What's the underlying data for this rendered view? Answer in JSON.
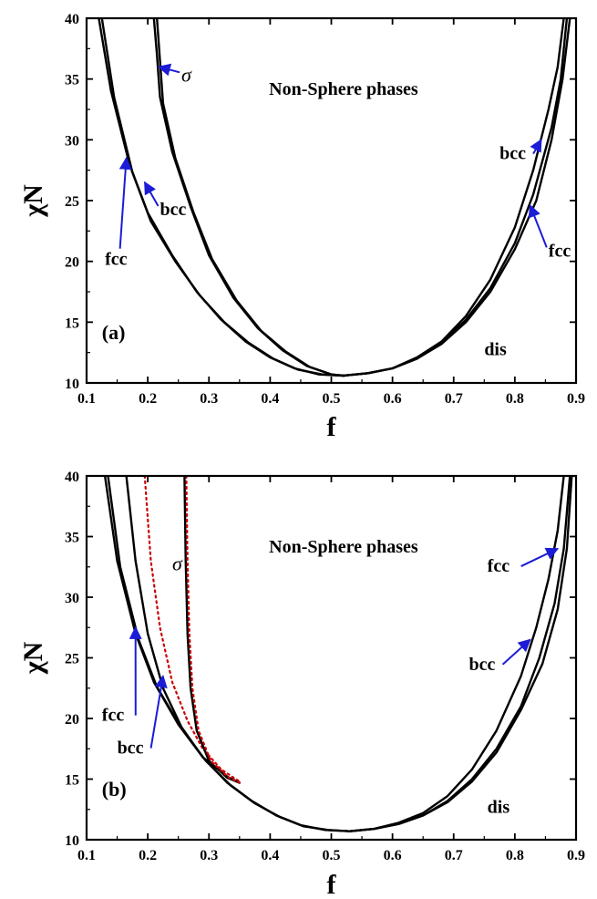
{
  "chart_data": [
    {
      "type": "line",
      "panel_label": "(a)",
      "xlabel": "f",
      "ylabel": "χN",
      "xlim": [
        0.1,
        0.9
      ],
      "ylim": [
        10,
        40
      ],
      "xticks": [
        "0.1",
        "0.2",
        "0.3",
        "0.4",
        "0.5",
        "0.6",
        "0.7",
        "0.8",
        "0.9"
      ],
      "yticks": [
        "10",
        "15",
        "20",
        "25",
        "30",
        "35",
        "40"
      ],
      "region_label": "Non-Sphere phases",
      "series": [
        {
          "color": "#000000",
          "style": "solid",
          "x": [
            0.12,
            0.14,
            0.17,
            0.2,
            0.24,
            0.28,
            0.32,
            0.36,
            0.4,
            0.44,
            0.48,
            0.52
          ],
          "y": [
            40,
            34,
            28,
            24,
            20.5,
            17.5,
            15.2,
            13.4,
            12.1,
            11.2,
            10.7,
            10.6
          ]
        },
        {
          "color": "#000000",
          "style": "solid",
          "x": [
            0.125,
            0.145,
            0.175,
            0.205,
            0.245,
            0.285,
            0.325,
            0.365,
            0.405,
            0.445,
            0.485,
            0.52
          ],
          "y": [
            40,
            33.5,
            27.3,
            23.3,
            20,
            17.2,
            15,
            13.3,
            12,
            11.1,
            10.7,
            10.6
          ]
        },
        {
          "color": "#000000",
          "style": "solid",
          "x": [
            0.21,
            0.215,
            0.22,
            0.24,
            0.27,
            0.3,
            0.34,
            0.38,
            0.42,
            0.46,
            0.5,
            0.52
          ],
          "y": [
            40,
            37,
            33.5,
            29,
            24.5,
            20.5,
            17,
            14.5,
            12.7,
            11.4,
            10.7,
            10.6
          ]
        },
        {
          "color": "#000000",
          "style": "solid",
          "x": [
            0.215,
            0.22,
            0.225,
            0.245,
            0.275,
            0.305,
            0.345,
            0.385,
            0.425,
            0.465,
            0.5,
            0.52
          ],
          "y": [
            40,
            36.5,
            33,
            28.5,
            24,
            20.2,
            16.8,
            14.3,
            12.6,
            11.3,
            10.7,
            10.6
          ]
        },
        {
          "color": "#000000",
          "style": "solid",
          "x": [
            0.52,
            0.56,
            0.6,
            0.64,
            0.68,
            0.72,
            0.76,
            0.8,
            0.83,
            0.86,
            0.875,
            0.885
          ],
          "y": [
            10.6,
            10.8,
            11.2,
            12,
            13.3,
            15.2,
            17.8,
            21.5,
            25.5,
            31,
            35,
            40
          ]
        },
        {
          "color": "#000000",
          "style": "solid",
          "x": [
            0.52,
            0.56,
            0.6,
            0.64,
            0.68,
            0.72,
            0.76,
            0.8,
            0.83,
            0.855,
            0.87,
            0.88
          ],
          "y": [
            10.6,
            10.8,
            11.2,
            12.1,
            13.4,
            15.5,
            18.5,
            22.8,
            27.5,
            32.5,
            36,
            40
          ]
        },
        {
          "color": "#000000",
          "style": "solid",
          "x": [
            0.52,
            0.56,
            0.6,
            0.64,
            0.68,
            0.72,
            0.76,
            0.8,
            0.835,
            0.86,
            0.878,
            0.89
          ],
          "y": [
            10.6,
            10.8,
            11.2,
            12,
            13.2,
            15,
            17.5,
            21,
            25,
            30,
            35,
            40
          ]
        }
      ],
      "annotations": [
        {
          "text": "σ",
          "x": 0.255,
          "y": 34.8,
          "arrow_to": [
            0.218,
            36.0
          ]
        },
        {
          "text": "bcc",
          "x": 0.22,
          "y": 23.8,
          "arrow_to": [
            0.195,
            26.5
          ]
        },
        {
          "text": "fcc",
          "x": 0.13,
          "y": 19.7,
          "arrow_to": [
            0.165,
            28.5
          ]
        },
        {
          "text": "bcc",
          "x": 0.775,
          "y": 28.4,
          "arrow_to": [
            0.843,
            30.0
          ]
        },
        {
          "text": "fcc",
          "x": 0.855,
          "y": 20.4,
          "arrow_to": [
            0.825,
            24.6
          ]
        },
        {
          "text": "dis",
          "x": 0.75,
          "y": 12.3
        }
      ]
    },
    {
      "type": "line",
      "panel_label": "(b)",
      "xlabel": "f",
      "ylabel": "χN",
      "xlim": [
        0.1,
        0.9
      ],
      "ylim": [
        10,
        40
      ],
      "xticks": [
        "0.1",
        "0.2",
        "0.3",
        "0.4",
        "0.5",
        "0.6",
        "0.7",
        "0.8",
        "0.9"
      ],
      "yticks": [
        "10",
        "15",
        "20",
        "25",
        "30",
        "35",
        "40"
      ],
      "region_label": "Non-Sphere phases",
      "series": [
        {
          "color": "#000000",
          "style": "solid",
          "x": [
            0.13,
            0.15,
            0.18,
            0.21,
            0.25,
            0.29,
            0.33,
            0.37,
            0.41,
            0.45,
            0.49,
            0.53
          ],
          "y": [
            40,
            33,
            27,
            23,
            19.5,
            16.8,
            14.7,
            13.2,
            12,
            11.2,
            10.8,
            10.7
          ]
        },
        {
          "color": "#000000",
          "style": "solid",
          "x": [
            0.135,
            0.155,
            0.185,
            0.215,
            0.255,
            0.295,
            0.335,
            0.375,
            0.415,
            0.455,
            0.495,
            0.53
          ],
          "y": [
            40,
            32.5,
            26.5,
            22.6,
            19.2,
            16.5,
            14.5,
            13,
            11.9,
            11.1,
            10.8,
            10.7
          ]
        },
        {
          "color": "#000000",
          "style": "solid",
          "x": [
            0.165,
            0.18,
            0.2,
            0.225,
            0.255,
            0.29,
            0.33,
            0.35
          ],
          "y": [
            40,
            33,
            27,
            22.5,
            19.3,
            16.8,
            15.2,
            14.7
          ]
        },
        {
          "color": "#cc0000",
          "style": "dotted",
          "x": [
            0.195,
            0.205,
            0.22,
            0.24,
            0.265,
            0.29,
            0.32,
            0.35
          ],
          "y": [
            40,
            33,
            27.5,
            23,
            19.8,
            17.5,
            15.8,
            14.8
          ]
        },
        {
          "color": "#000000",
          "style": "solid",
          "x": [
            0.26,
            0.262,
            0.265,
            0.27,
            0.28,
            0.3,
            0.33,
            0.35
          ],
          "y": [
            40,
            33,
            27,
            22.5,
            19,
            16.5,
            15.1,
            14.7
          ]
        },
        {
          "color": "#cc0000",
          "style": "dotted",
          "x": [
            0.263,
            0.265,
            0.268,
            0.273,
            0.283,
            0.303,
            0.333,
            0.35
          ],
          "y": [
            40,
            33,
            27,
            22.5,
            19,
            16.5,
            15.1,
            14.7
          ]
        },
        {
          "color": "#000000",
          "style": "solid",
          "x": [
            0.53,
            0.57,
            0.61,
            0.65,
            0.69,
            0.73,
            0.77,
            0.81,
            0.84,
            0.865,
            0.88,
            0.89
          ],
          "y": [
            10.7,
            10.9,
            11.3,
            12,
            13.2,
            15,
            17.5,
            21,
            25,
            29.5,
            34,
            40
          ]
        },
        {
          "color": "#000000",
          "style": "solid",
          "x": [
            0.53,
            0.57,
            0.61,
            0.65,
            0.69,
            0.73,
            0.77,
            0.81,
            0.845,
            0.87,
            0.885,
            0.893
          ],
          "y": [
            10.7,
            10.9,
            11.3,
            12,
            13.1,
            14.8,
            17.2,
            20.7,
            24.5,
            29,
            34,
            40
          ]
        },
        {
          "color": "#000000",
          "style": "solid",
          "x": [
            0.53,
            0.57,
            0.61,
            0.65,
            0.69,
            0.73,
            0.77,
            0.81,
            0.835,
            0.855,
            0.87,
            0.88
          ],
          "y": [
            10.7,
            10.9,
            11.4,
            12.2,
            13.6,
            15.8,
            19,
            23.5,
            27.5,
            31.5,
            35.5,
            40
          ]
        }
      ],
      "annotations": [
        {
          "text": "σ",
          "x": 0.24,
          "y": 32.2
        },
        {
          "text": "fcc",
          "x": 0.125,
          "y": 19.8,
          "arrow_to": [
            0.18,
            27.5
          ]
        },
        {
          "text": "bcc",
          "x": 0.15,
          "y": 17.1,
          "arrow_to": [
            0.225,
            23.5
          ]
        },
        {
          "text": "fcc",
          "x": 0.755,
          "y": 32.1,
          "arrow_to": [
            0.87,
            34.0
          ]
        },
        {
          "text": "bcc",
          "x": 0.725,
          "y": 24.0,
          "arrow_to": [
            0.825,
            26.5
          ]
        },
        {
          "text": "dis",
          "x": 0.755,
          "y": 12.2
        }
      ]
    }
  ]
}
